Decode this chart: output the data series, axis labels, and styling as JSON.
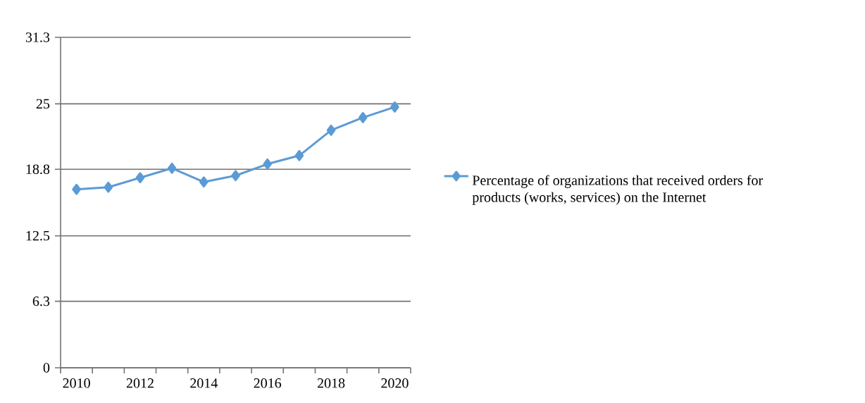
{
  "chart_data": {
    "type": "line",
    "categories": [
      "2010",
      null,
      "2012",
      null,
      "2014",
      null,
      "2016",
      null,
      "2018",
      null,
      "2020"
    ],
    "series": [
      {
        "name": "Percentage of organizations that received orders for products (works, services) on the Internet",
        "color": "#5b9bd5",
        "values": [
          16.9,
          17.1,
          18.0,
          18.9,
          17.6,
          18.2,
          19.3,
          20.1,
          22.5,
          23.7,
          24.7
        ]
      }
    ],
    "ylim": [
      0,
      31.3
    ],
    "yticks": [
      0,
      6.3,
      12.5,
      18.8,
      25,
      31.3
    ],
    "grid": "y",
    "legend": "right",
    "marker": "diamond",
    "line_style": "solid"
  }
}
